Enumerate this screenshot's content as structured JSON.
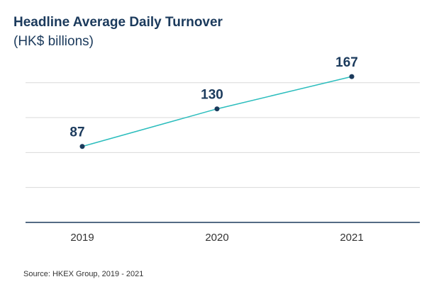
{
  "header": {
    "title": "Headline Average Daily Turnover",
    "subtitle": "(HK$ billions)"
  },
  "footer": {
    "source": "Source: HKEX Group, 2019 - 2021"
  },
  "colors": {
    "line": "#2bbdbd",
    "point": "#1b3a5c",
    "grid": "#d9d9d9",
    "axis": "#1b3a5c",
    "text_dark": "#1b3a5c"
  },
  "chart_data": {
    "type": "line",
    "title": "Headline Average Daily Turnover",
    "subtitle": "(HK$ billions)",
    "categories": [
      "2019",
      "2020",
      "2021"
    ],
    "series": [
      {
        "values": [
          87,
          130,
          167
        ]
      }
    ],
    "data_labels": [
      "87",
      "130",
      "167"
    ],
    "ylim": [
      0,
      200
    ],
    "grid": true,
    "legend": "none"
  }
}
